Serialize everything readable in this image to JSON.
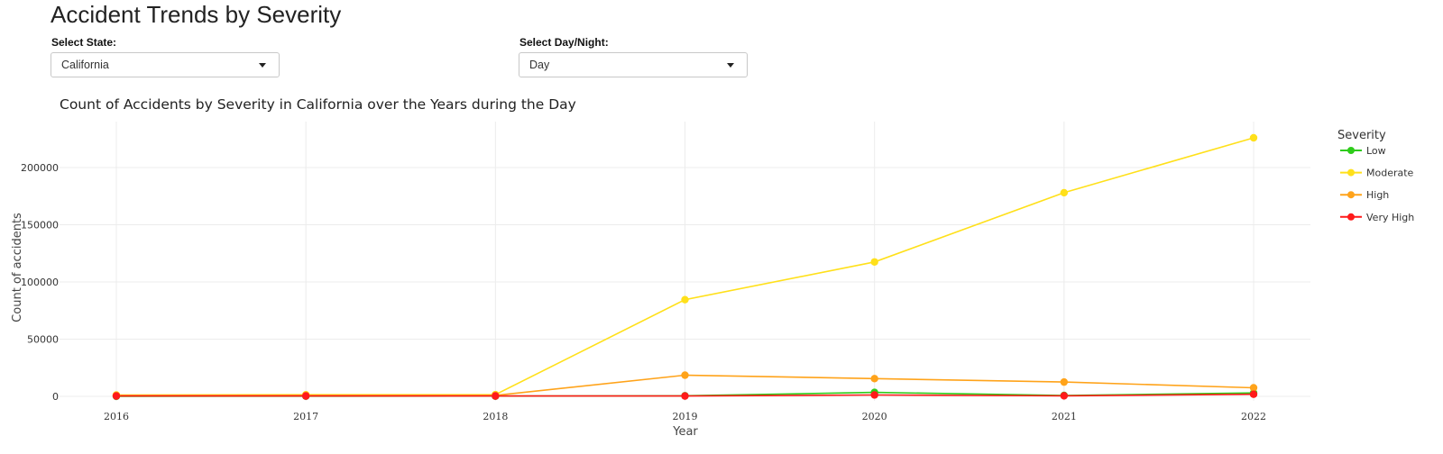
{
  "page": {
    "title": "Accident Trends by Severity"
  },
  "controls": {
    "state": {
      "label": "Select State:",
      "selected": "California"
    },
    "daynight": {
      "label": "Select Day/Night:",
      "selected": "Day"
    }
  },
  "chart_data": {
    "type": "line",
    "title": "Count of Accidents by Severity in California over the Years during the Day",
    "xlabel": "Year",
    "ylabel": "Count of accidents",
    "x": [
      2016,
      2017,
      2018,
      2019,
      2020,
      2021,
      2022
    ],
    "yticks": [
      0,
      50000,
      100000,
      150000,
      200000
    ],
    "ylim": [
      -1000,
      240000
    ],
    "legend_title": "Severity",
    "legend_position": "right",
    "grid": true,
    "series": [
      {
        "name": "Low",
        "color": "#2ecc1a",
        "values": [
          100,
          150,
          200,
          500,
          3500,
          800,
          3000
        ]
      },
      {
        "name": "Moderate",
        "color": "#ffe01a",
        "values": [
          1200,
          1400,
          1500,
          84500,
          117500,
          178000,
          226000
        ]
      },
      {
        "name": "High",
        "color": "#ffa31a",
        "values": [
          800,
          900,
          900,
          18500,
          15500,
          12500,
          7500
        ]
      },
      {
        "name": "Very High",
        "color": "#ff1a1a",
        "values": [
          300,
          300,
          300,
          300,
          1200,
          500,
          1800
        ]
      }
    ]
  }
}
